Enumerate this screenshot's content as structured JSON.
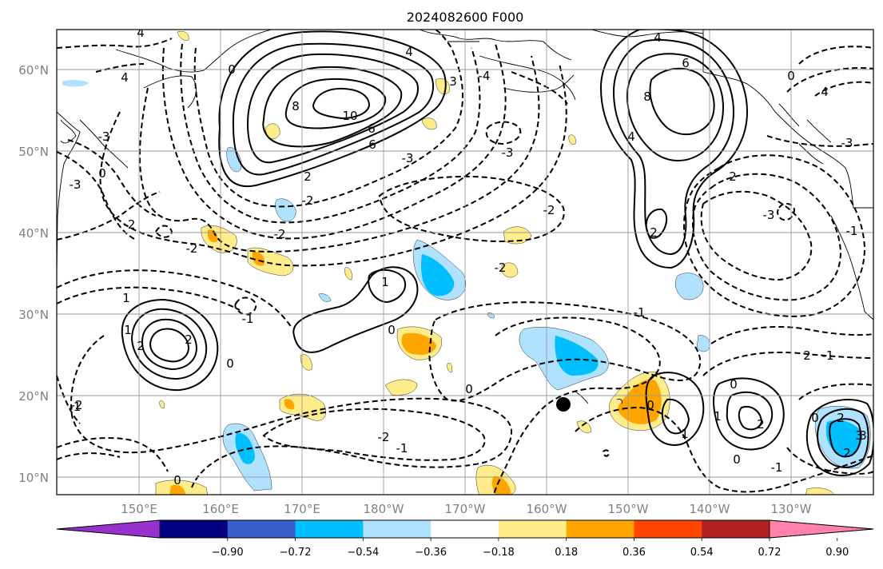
{
  "title": "2024082600 F000",
  "lat_labels": [
    "60°N",
    "50°N",
    "40°N",
    "30°N",
    "20°N",
    "10°N"
  ],
  "lon_labels": [
    "150°E",
    "160°E",
    "170°E",
    "180°W",
    "170°W",
    "160°W",
    "150°W",
    "140°W",
    "130°W"
  ],
  "colorbar": {
    "ticks": [
      "−0.90",
      "−0.72",
      "−0.54",
      "−0.36",
      "−0.18",
      "0.18",
      "0.36",
      "0.54",
      "0.72",
      "0.90"
    ],
    "colors": [
      "#9932cc",
      "#000080",
      "#3a5fcd",
      "#00bfff",
      "#b0e2ff",
      "#ffffff",
      "#ffec8b",
      "#ffa500",
      "#ff4500",
      "#b22222",
      "#ff82ab"
    ]
  },
  "fill_colors": {
    "light_blue": "#b0e2ff",
    "blue": "#00bfff",
    "yellow": "#ffec8b",
    "orange": "#ffa500"
  },
  "contour_labels": [
    "4",
    "4",
    "6",
    "8",
    "10",
    "6",
    "4",
    "2",
    "0",
    "-2",
    "-3",
    "3",
    "-3",
    "-2",
    "-4",
    "4",
    "6",
    "8",
    "4",
    "2",
    "2",
    "0",
    "4",
    "-3",
    "-3",
    "-2",
    "-2",
    "-2",
    "-1",
    "1",
    "1",
    "0",
    "0",
    "-1",
    "-1",
    "1",
    "2",
    "2",
    "0",
    "-2",
    "0",
    "-1",
    "0",
    "0",
    "1",
    "2",
    "0",
    "2",
    "3",
    "-1",
    "-1",
    "2",
    "-2",
    "-3",
    "0",
    "-1",
    "-3",
    "2",
    "-2",
    "1",
    "3",
    "0"
  ],
  "marker": "storm-center-dot"
}
